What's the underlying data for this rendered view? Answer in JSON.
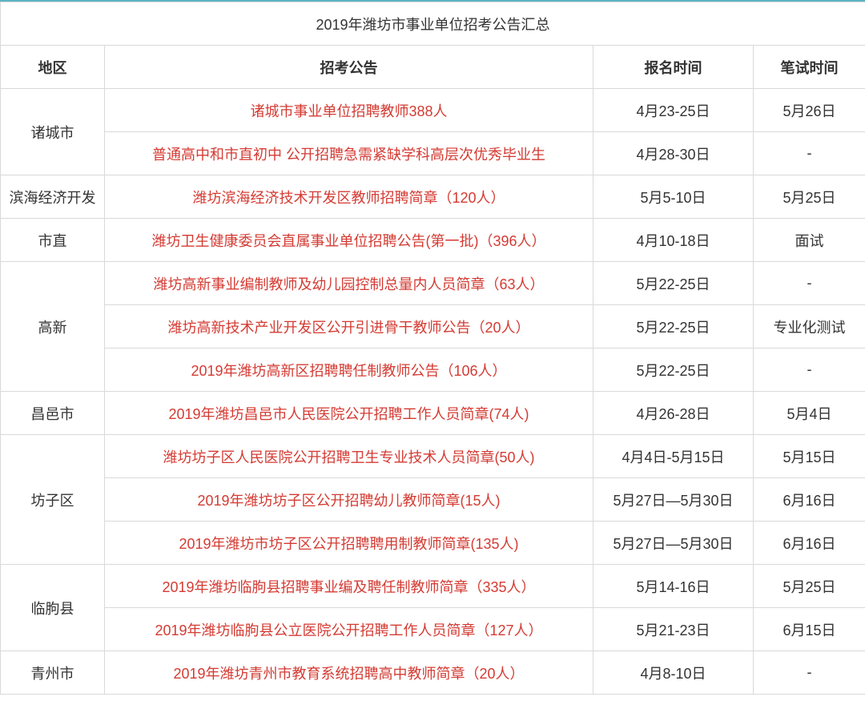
{
  "title": "2019年潍坊市事业单位招考公告汇总",
  "columns": {
    "region": "地区",
    "notice": "招考公告",
    "register": "报名时间",
    "exam": "笔试时间"
  },
  "colors": {
    "top_border": "#5ab4c4",
    "cell_border": "#d9d9d9",
    "text": "#333333",
    "link": "#d43b33",
    "background": "#ffffff"
  },
  "rows": [
    {
      "region": "诸城市",
      "region_rowspan": 2,
      "notice": "诸城市事业单位招聘教师388人",
      "register": "4月23-25日",
      "exam": "5月26日"
    },
    {
      "notice": "普通高中和市直初中 公开招聘急需紧缺学科高层次优秀毕业生",
      "register": "4月28-30日",
      "exam": "-"
    },
    {
      "region": "滨海经济开发",
      "region_rowspan": 1,
      "notice": "潍坊滨海经济技术开发区教师招聘简章（120人）",
      "register": "5月5-10日",
      "exam": "5月25日"
    },
    {
      "region": "市直",
      "region_rowspan": 1,
      "notice": "潍坊卫生健康委员会直属事业单位招聘公告(第一批)（396人）",
      "register": "4月10-18日",
      "exam": "面试"
    },
    {
      "region": "高新",
      "region_rowspan": 3,
      "notice": "潍坊高新事业编制教师及幼儿园控制总量内人员简章（63人）",
      "register": "5月22-25日",
      "exam": "-"
    },
    {
      "notice": "潍坊高新技术产业开发区公开引进骨干教师公告（20人）",
      "register": "5月22-25日",
      "exam": "专业化测试"
    },
    {
      "notice": "2019年潍坊高新区招聘聘任制教师公告（106人）",
      "register": "5月22-25日",
      "exam": "-"
    },
    {
      "region": "昌邑市",
      "region_rowspan": 1,
      "notice": "2019年潍坊昌邑市人民医院公开招聘工作人员简章(74人)",
      "register": "4月26-28日",
      "exam": "5月4日"
    },
    {
      "region": "坊子区",
      "region_rowspan": 3,
      "notice": "潍坊坊子区人民医院公开招聘卫生专业技术人员简章(50人)",
      "register": "4月4日-5月15日",
      "exam": "5月15日"
    },
    {
      "notice": "2019年潍坊坊子区公开招聘幼儿教师简章(15人)",
      "register": "5月27日—5月30日",
      "exam": "6月16日"
    },
    {
      "notice": "2019年潍坊市坊子区公开招聘聘用制教师简章(135人)",
      "register": "5月27日—5月30日",
      "exam": "6月16日"
    },
    {
      "region": "临朐县",
      "region_rowspan": 2,
      "notice": "2019年潍坊临朐县招聘事业编及聘任制教师简章（335人）",
      "register": "5月14-16日",
      "exam": "5月25日"
    },
    {
      "notice": "2019年潍坊临朐县公立医院公开招聘工作人员简章（127人）",
      "register": "5月21-23日",
      "exam": "6月15日"
    },
    {
      "region": "青州市",
      "region_rowspan": 1,
      "notice": "2019年潍坊青州市教育系统招聘高中教师简章（20人）",
      "register": "4月8-10日",
      "exam": "-"
    }
  ]
}
